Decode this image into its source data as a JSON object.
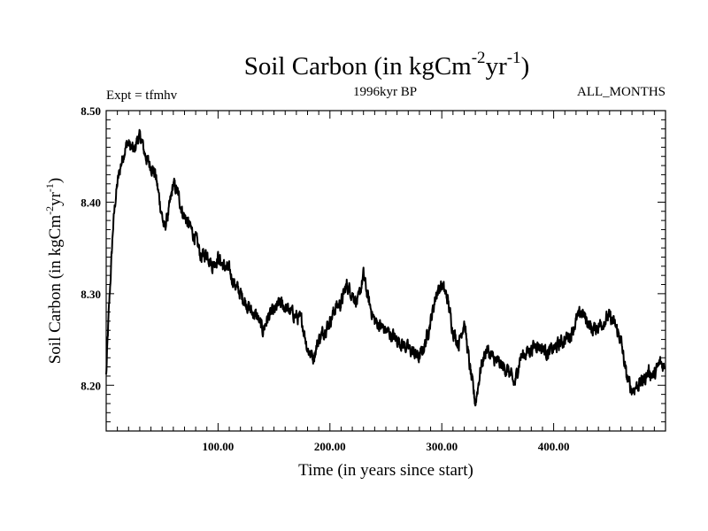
{
  "chart_data": {
    "type": "line",
    "title": "Soil Carbon (in kgCm",
    "title_sup1": "-2",
    "title_mid": "yr",
    "title_sup2": "-1",
    "title_end": ")",
    "subtitle_left": "Expt = tfmhv",
    "subtitle_center": "1996kyr BP",
    "subtitle_right": "ALL_MONTHS",
    "xlabel": "Time (in years since start)",
    "ylabel": "Soil Carbon (in kgCm",
    "ylabel_sup1": "-2",
    "ylabel_mid": "yr",
    "ylabel_sup2": "-1",
    "ylabel_end": ")",
    "xlim": [
      0,
      500
    ],
    "ylim": [
      8.15,
      8.5
    ],
    "x_ticks": [
      100,
      200,
      300,
      400
    ],
    "x_tick_labels": [
      "100.00",
      "200.00",
      "300.00",
      "400.00"
    ],
    "y_ticks": [
      8.2,
      8.3,
      8.4,
      8.5
    ],
    "y_tick_labels": [
      "8.20",
      "8.30",
      "8.40",
      "8.50"
    ],
    "grid": false,
    "line_color": "#000000",
    "series": [
      {
        "x": [
          0,
          2,
          4,
          6,
          8,
          10,
          13,
          16,
          19,
          22,
          25,
          28,
          31,
          34,
          37,
          40,
          44,
          48,
          52,
          56,
          60,
          64,
          68,
          72,
          76,
          80,
          85,
          90,
          95,
          100,
          105,
          110,
          115,
          120,
          125,
          130,
          135,
          140,
          145,
          150,
          155,
          160,
          165,
          170,
          175,
          180,
          185,
          190,
          195,
          200,
          205,
          210,
          215,
          220,
          225,
          230,
          235,
          240,
          245,
          250,
          255,
          260,
          265,
          270,
          275,
          280,
          285,
          290,
          295,
          300,
          305,
          310,
          315,
          320,
          325,
          330,
          335,
          340,
          345,
          350,
          355,
          360,
          365,
          370,
          375,
          380,
          385,
          390,
          395,
          400,
          405,
          410,
          415,
          420,
          425,
          430,
          435,
          440,
          445,
          450,
          455,
          460,
          465,
          470,
          475,
          480,
          485,
          490,
          495,
          499
        ],
        "values": [
          8.21,
          8.27,
          8.32,
          8.37,
          8.4,
          8.42,
          8.44,
          8.455,
          8.465,
          8.46,
          8.455,
          8.47,
          8.47,
          8.455,
          8.445,
          8.44,
          8.43,
          8.4,
          8.37,
          8.39,
          8.42,
          8.41,
          8.39,
          8.38,
          8.37,
          8.36,
          8.34,
          8.345,
          8.33,
          8.34,
          8.33,
          8.325,
          8.31,
          8.3,
          8.29,
          8.28,
          8.275,
          8.26,
          8.275,
          8.28,
          8.29,
          8.285,
          8.28,
          8.275,
          8.27,
          8.24,
          8.23,
          8.25,
          8.26,
          8.27,
          8.285,
          8.29,
          8.31,
          8.3,
          8.29,
          8.32,
          8.29,
          8.27,
          8.265,
          8.26,
          8.255,
          8.25,
          8.245,
          8.24,
          8.235,
          8.23,
          8.245,
          8.27,
          8.3,
          8.31,
          8.295,
          8.26,
          8.245,
          8.27,
          8.22,
          8.18,
          8.22,
          8.24,
          8.23,
          8.225,
          8.22,
          8.215,
          8.2,
          8.23,
          8.235,
          8.24,
          8.245,
          8.24,
          8.235,
          8.24,
          8.245,
          8.25,
          8.255,
          8.27,
          8.28,
          8.27,
          8.26,
          8.265,
          8.27,
          8.275,
          8.265,
          8.25,
          8.21,
          8.195,
          8.2,
          8.205,
          8.215,
          8.21,
          8.225,
          8.22
        ]
      }
    ]
  }
}
